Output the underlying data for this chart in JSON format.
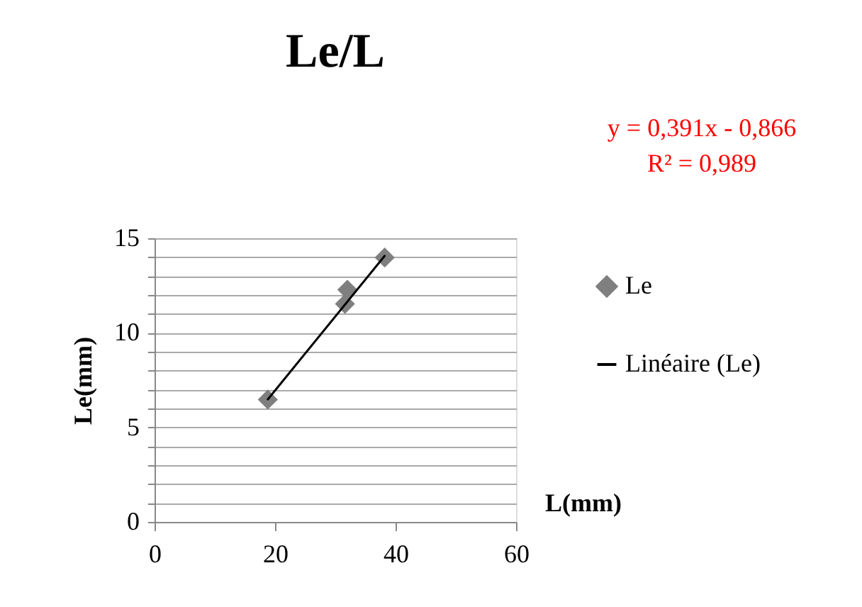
{
  "chart_data": {
    "type": "scatter",
    "title": "Le/L",
    "xlabel": "L(mm)",
    "ylabel": "Le(mm)",
    "annotations": [
      "y = 0,391x - 0,866",
      "R² = 0,989"
    ],
    "xlim": [
      0,
      60
    ],
    "xticks": [
      0,
      20,
      40,
      60
    ],
    "ylim": [
      0,
      15
    ],
    "yticks": [
      0,
      {
        "value": 1,
        "label": null
      },
      {
        "value": 2,
        "label": null
      },
      {
        "value": 3,
        "label": null
      },
      {
        "value": 4,
        "label": null
      },
      5,
      {
        "value": 6,
        "label": null
      },
      {
        "value": 7,
        "label": null
      },
      {
        "value": 8,
        "label": null
      },
      {
        "value": 9,
        "label": null
      },
      10,
      {
        "value": 11,
        "label": null
      },
      {
        "value": 12,
        "label": null
      },
      {
        "value": 13,
        "label": null
      },
      {
        "value": 14,
        "label": null
      },
      15
    ],
    "grid": "y",
    "legend": "right",
    "marker": "diamond",
    "series": [
      {
        "name": "Le",
        "color": "#7f7f7f",
        "x": [
          18.8,
          32.0,
          31.6,
          38.2
        ],
        "values": [
          6.47,
          12.28,
          11.53,
          13.98
        ]
      },
      {
        "name": "Linéaire (Le)",
        "type": "line",
        "color": "#000000",
        "line_style": "solid",
        "marker": "none",
        "x": [
          18.8,
          38.2
        ],
        "values": [
          6.48,
          14.07
        ]
      }
    ]
  }
}
